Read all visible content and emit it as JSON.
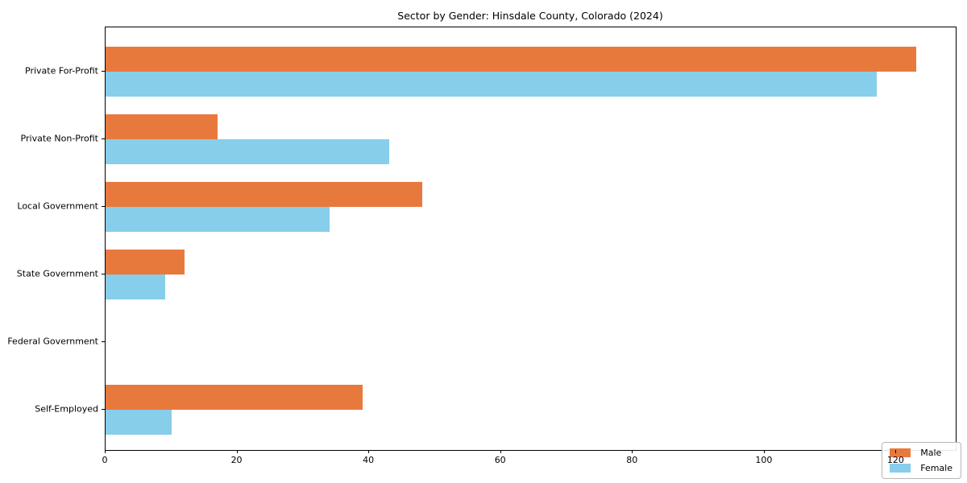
{
  "chart_data": {
    "type": "bar",
    "orientation": "horizontal",
    "title": "Sector by Gender: Hinsdale County, Colorado (2024)",
    "categories": [
      "Private For-Profit",
      "Private Non-Profit",
      "Local Government",
      "State Government",
      "Federal Government",
      "Self-Employed"
    ],
    "series": [
      {
        "name": "Male",
        "color": "#e8793d",
        "values": [
          123,
          17,
          48,
          12,
          0,
          39
        ]
      },
      {
        "name": "Female",
        "color": "#87ceeb",
        "values": [
          117,
          43,
          34,
          9,
          0,
          10
        ]
      }
    ],
    "xlabel": "",
    "ylabel": "",
    "xlim": [
      0,
      129
    ],
    "xticks": [
      0,
      20,
      40,
      60,
      80,
      100,
      120
    ],
    "grid": false,
    "legend_position": "lower right",
    "legend_entries": [
      "Male",
      "Female"
    ]
  }
}
